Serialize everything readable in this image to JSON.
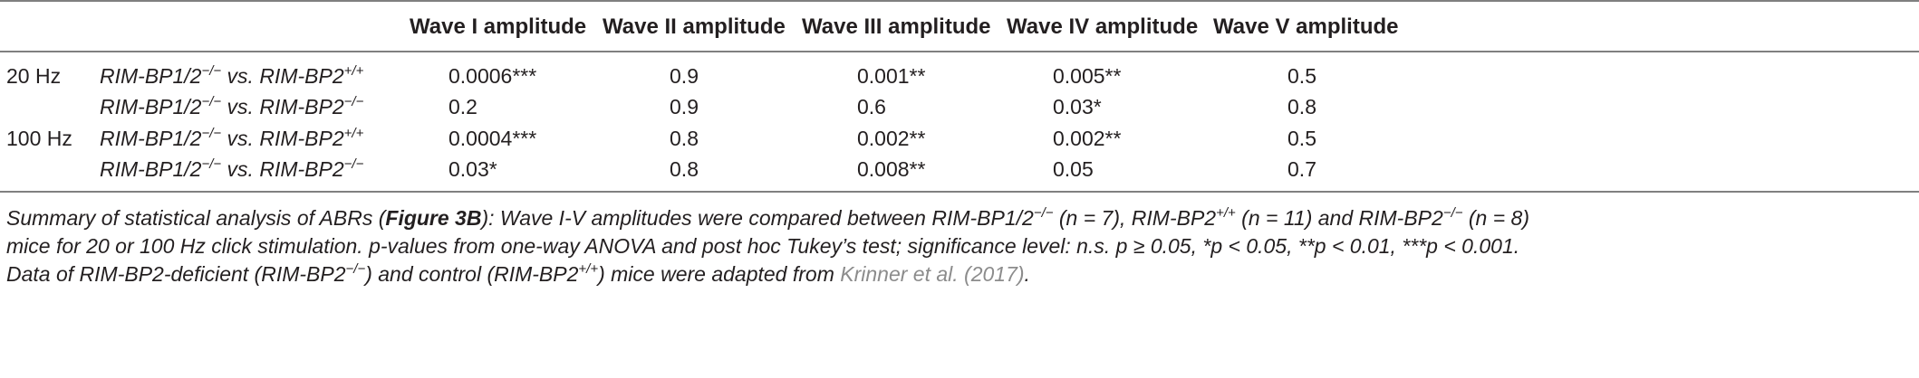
{
  "table": {
    "headers": [
      "Wave I amplitude",
      "Wave II amplitude",
      "Wave III amplitude",
      "Wave IV amplitude",
      "Wave V amplitude"
    ],
    "rows": [
      {
        "freq": "20 Hz",
        "cmp_a": "RIM-BP1/2",
        "sup_a": "−/−",
        "cmp_mid": " vs. RIM-BP2",
        "sup_b": "+/+",
        "values": [
          "0.0006***",
          "0.9",
          "0.001**",
          "0.005**",
          "0.5"
        ]
      },
      {
        "freq": "",
        "cmp_a": "RIM-BP1/2",
        "sup_a": "−/−",
        "cmp_mid": " vs. RIM-BP2",
        "sup_b": "−/−",
        "values": [
          "0.2",
          "0.9",
          "0.6",
          "0.03*",
          "0.8"
        ]
      },
      {
        "freq": "100 Hz",
        "cmp_a": "RIM-BP1/2",
        "sup_a": "−/−",
        "cmp_mid": " vs. RIM-BP2",
        "sup_b": "+/+",
        "values": [
          "0.0004***",
          "0.8",
          "0.002**",
          "0.002**",
          "0.5"
        ]
      },
      {
        "freq": "",
        "cmp_a": "RIM-BP1/2",
        "sup_a": "−/−",
        "cmp_mid": " vs. RIM-BP2",
        "sup_b": "−/−",
        "values": [
          "0.03*",
          "0.8",
          "0.008**",
          "0.05",
          "0.7"
        ]
      }
    ]
  },
  "caption": {
    "l1_a": "Summary of statistical analysis of ABRs (",
    "l1_fig": "Figure 3B",
    "l1_b": "): Wave I-V amplitudes were compared between RIM-BP1/2",
    "l1_sup1": "−/−",
    "l1_c": " (n = 7), RIM-BP2",
    "l1_sup2": "+/+",
    "l1_d": " (n = 11) and RIM-BP2",
    "l1_sup3": "−/−",
    "l1_e": " (n = 8)",
    "l2": "mice for 20 or 100 Hz click stimulation. p-values from one-way ANOVA and post hoc Tukey’s test; significance level: n.s. p ≥ 0.05, *p < 0.05, **p < 0.01, ***p < 0.001.",
    "l3_a": "Data of RIM-BP2-deficient (RIM-BP2",
    "l3_sup1": "−/−",
    "l3_b": ") and control (RIM-BP2",
    "l3_sup2": "+/+",
    "l3_c": ") mice were adapted from ",
    "l3_ref": "Krinner et al. (2017)",
    "l3_d": "."
  }
}
